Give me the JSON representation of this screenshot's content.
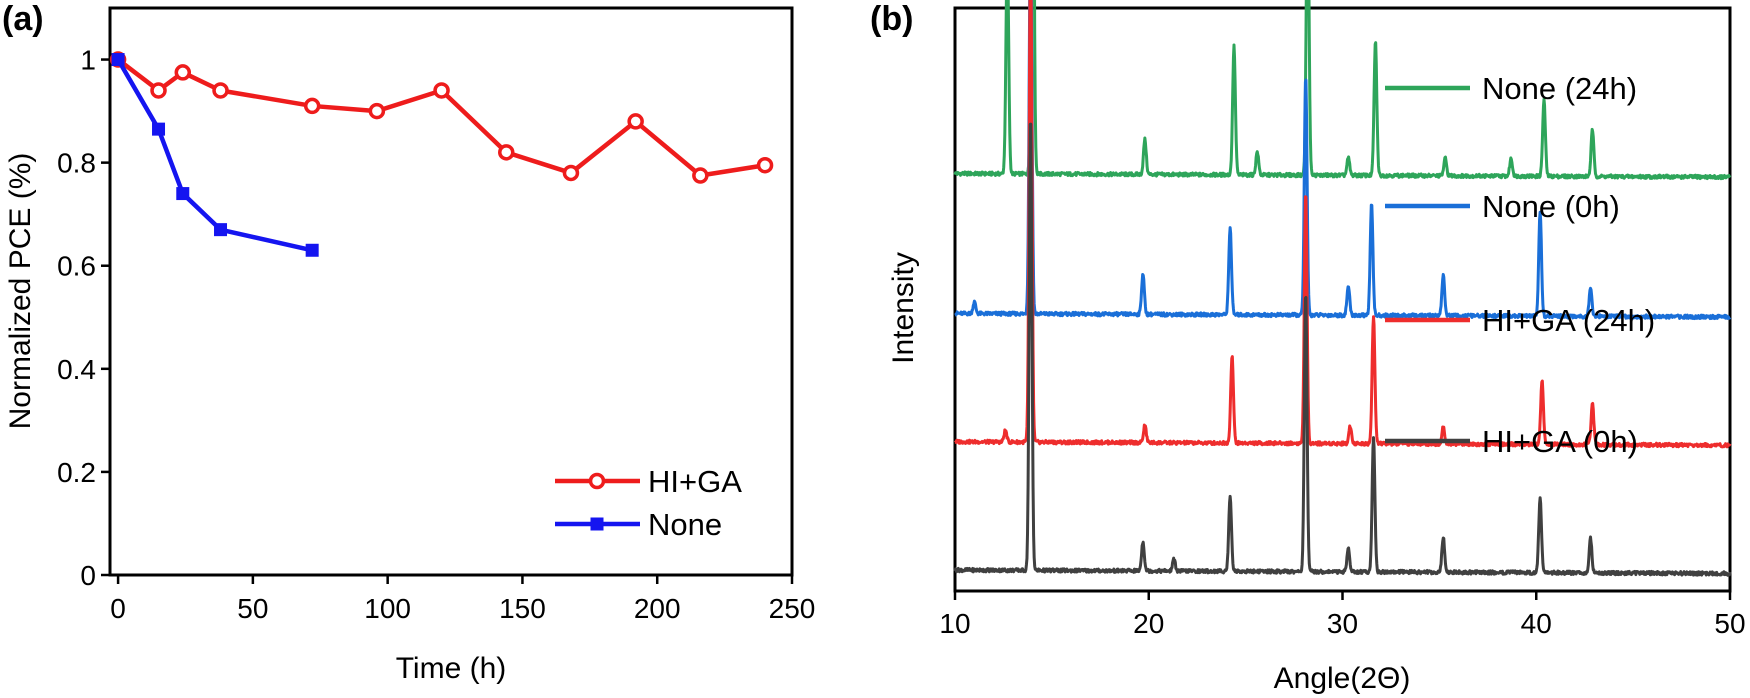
{
  "panels": [
    {
      "label": "(a)",
      "chart_data": {
        "type": "line",
        "xlabel": "Time (h)",
        "ylabel": "Normalized PCE (%)",
        "xlim": [
          -3,
          250
        ],
        "ylim": [
          0,
          1.1
        ],
        "xticks": [
          0,
          50,
          100,
          150,
          200,
          250
        ],
        "yticks": [
          0,
          0.2,
          0.4,
          0.6,
          0.8,
          1
        ],
        "xtick_labels": [
          "0",
          "50",
          "100",
          "150",
          "200",
          "250"
        ],
        "ytick_labels": [
          "0",
          "0.2",
          "0.4",
          "0.6",
          "0.8",
          "1"
        ],
        "grid": false,
        "legend_position": "bottom-right",
        "series": [
          {
            "name": "HI+GA",
            "color": "#ee1c1c",
            "marker": "circle",
            "x": [
              0,
              15,
              24,
              38,
              72,
              96,
              120,
              144,
              168,
              192,
              216,
              240
            ],
            "y": [
              1.0,
              0.94,
              0.975,
              0.94,
              0.91,
              0.9,
              0.94,
              0.82,
              0.78,
              0.88,
              0.775,
              0.795
            ]
          },
          {
            "name": "None",
            "color": "#1515f0",
            "marker": "square",
            "x": [
              0,
              15,
              24,
              38,
              72
            ],
            "y": [
              1.0,
              0.865,
              0.74,
              0.67,
              0.63
            ]
          }
        ]
      }
    },
    {
      "label": "(b)",
      "chart_data": {
        "type": "line",
        "xlabel": "Angle(2Θ)",
        "ylabel": "Intensity",
        "xlim": [
          10,
          50
        ],
        "xticks": [
          10,
          20,
          30,
          40,
          50
        ],
        "xtick_labels": [
          "10",
          "20",
          "30",
          "40",
          "50"
        ],
        "yticks": [],
        "grid": false,
        "legend_position": "inline-right",
        "series": [
          {
            "name": "None (24h)",
            "color": "#2ea55a",
            "baseline": 0.71,
            "peaks": [
              [
                12.7,
                0.38
              ],
              [
                14.0,
                0.92
              ],
              [
                19.8,
                0.06
              ],
              [
                24.4,
                0.22
              ],
              [
                25.6,
                0.04
              ],
              [
                28.2,
                0.51
              ],
              [
                30.3,
                0.03
              ],
              [
                31.7,
                0.23
              ],
              [
                35.3,
                0.03
              ],
              [
                38.7,
                0.03
              ],
              [
                40.4,
                0.13
              ],
              [
                42.9,
                0.08
              ]
            ]
          },
          {
            "name": "None (0h)",
            "color": "#1a6fd8",
            "baseline": 0.47,
            "peaks": [
              [
                11.0,
                0.02
              ],
              [
                13.9,
                0.68
              ],
              [
                19.7,
                0.07
              ],
              [
                24.2,
                0.15
              ],
              [
                28.1,
                0.41
              ],
              [
                30.3,
                0.05
              ],
              [
                31.5,
                0.19
              ],
              [
                35.2,
                0.07
              ],
              [
                40.2,
                0.18
              ],
              [
                42.8,
                0.05
              ]
            ]
          },
          {
            "name": "HI+GA (24h)",
            "color": "#ee2d2d",
            "baseline": 0.25,
            "peaks": [
              [
                12.6,
                0.02
              ],
              [
                13.9,
                0.86
              ],
              [
                19.8,
                0.03
              ],
              [
                24.3,
                0.15
              ],
              [
                28.1,
                0.43
              ],
              [
                30.4,
                0.03
              ],
              [
                31.6,
                0.22
              ],
              [
                35.2,
                0.03
              ],
              [
                40.3,
                0.11
              ],
              [
                42.9,
                0.07
              ]
            ]
          },
          {
            "name": "HI+GA (0h)",
            "color": "#404040",
            "baseline": 0.03,
            "peaks": [
              [
                13.9,
                0.78
              ],
              [
                19.7,
                0.05
              ],
              [
                21.3,
                0.02
              ],
              [
                24.2,
                0.13
              ],
              [
                28.1,
                0.48
              ],
              [
                30.3,
                0.04
              ],
              [
                31.6,
                0.23
              ],
              [
                35.2,
                0.06
              ],
              [
                40.2,
                0.13
              ],
              [
                42.8,
                0.06
              ]
            ]
          }
        ]
      }
    }
  ]
}
